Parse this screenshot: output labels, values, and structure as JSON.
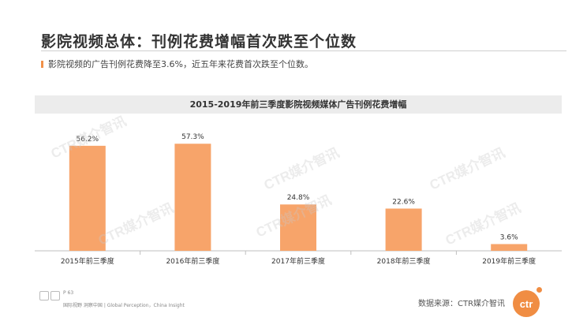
{
  "header": {
    "title": "影院视频总体：刊例花费增幅首次跌至个位数",
    "bullet": "影院视频的广告刊例花费降至3.6%，近五年来花费首次跌至个位数。"
  },
  "chart_data": {
    "type": "bar",
    "title": "2015-2019年前三季度影院视频媒体广告刊例花费增幅",
    "categories": [
      "2015年前三季度",
      "2016年前三季度",
      "2017年前三季度",
      "2018年前三季度",
      "2019年前三季度"
    ],
    "values": [
      56.2,
      57.3,
      24.8,
      22.6,
      3.6
    ],
    "value_labels": [
      "56.2%",
      "57.3%",
      "24.8%",
      "22.6%",
      "3.6%"
    ],
    "ylim": [
      0,
      65
    ],
    "grid": false,
    "legend": "none",
    "bar_color": "#f7a46a"
  },
  "watermark": "CTR媒介智讯",
  "footer": {
    "page": "P 63",
    "text": "国际视野  洞察中国 | Global Perception，China Insight",
    "source": "数据来源：CTR媒介智讯",
    "logo_text": "ctr"
  }
}
